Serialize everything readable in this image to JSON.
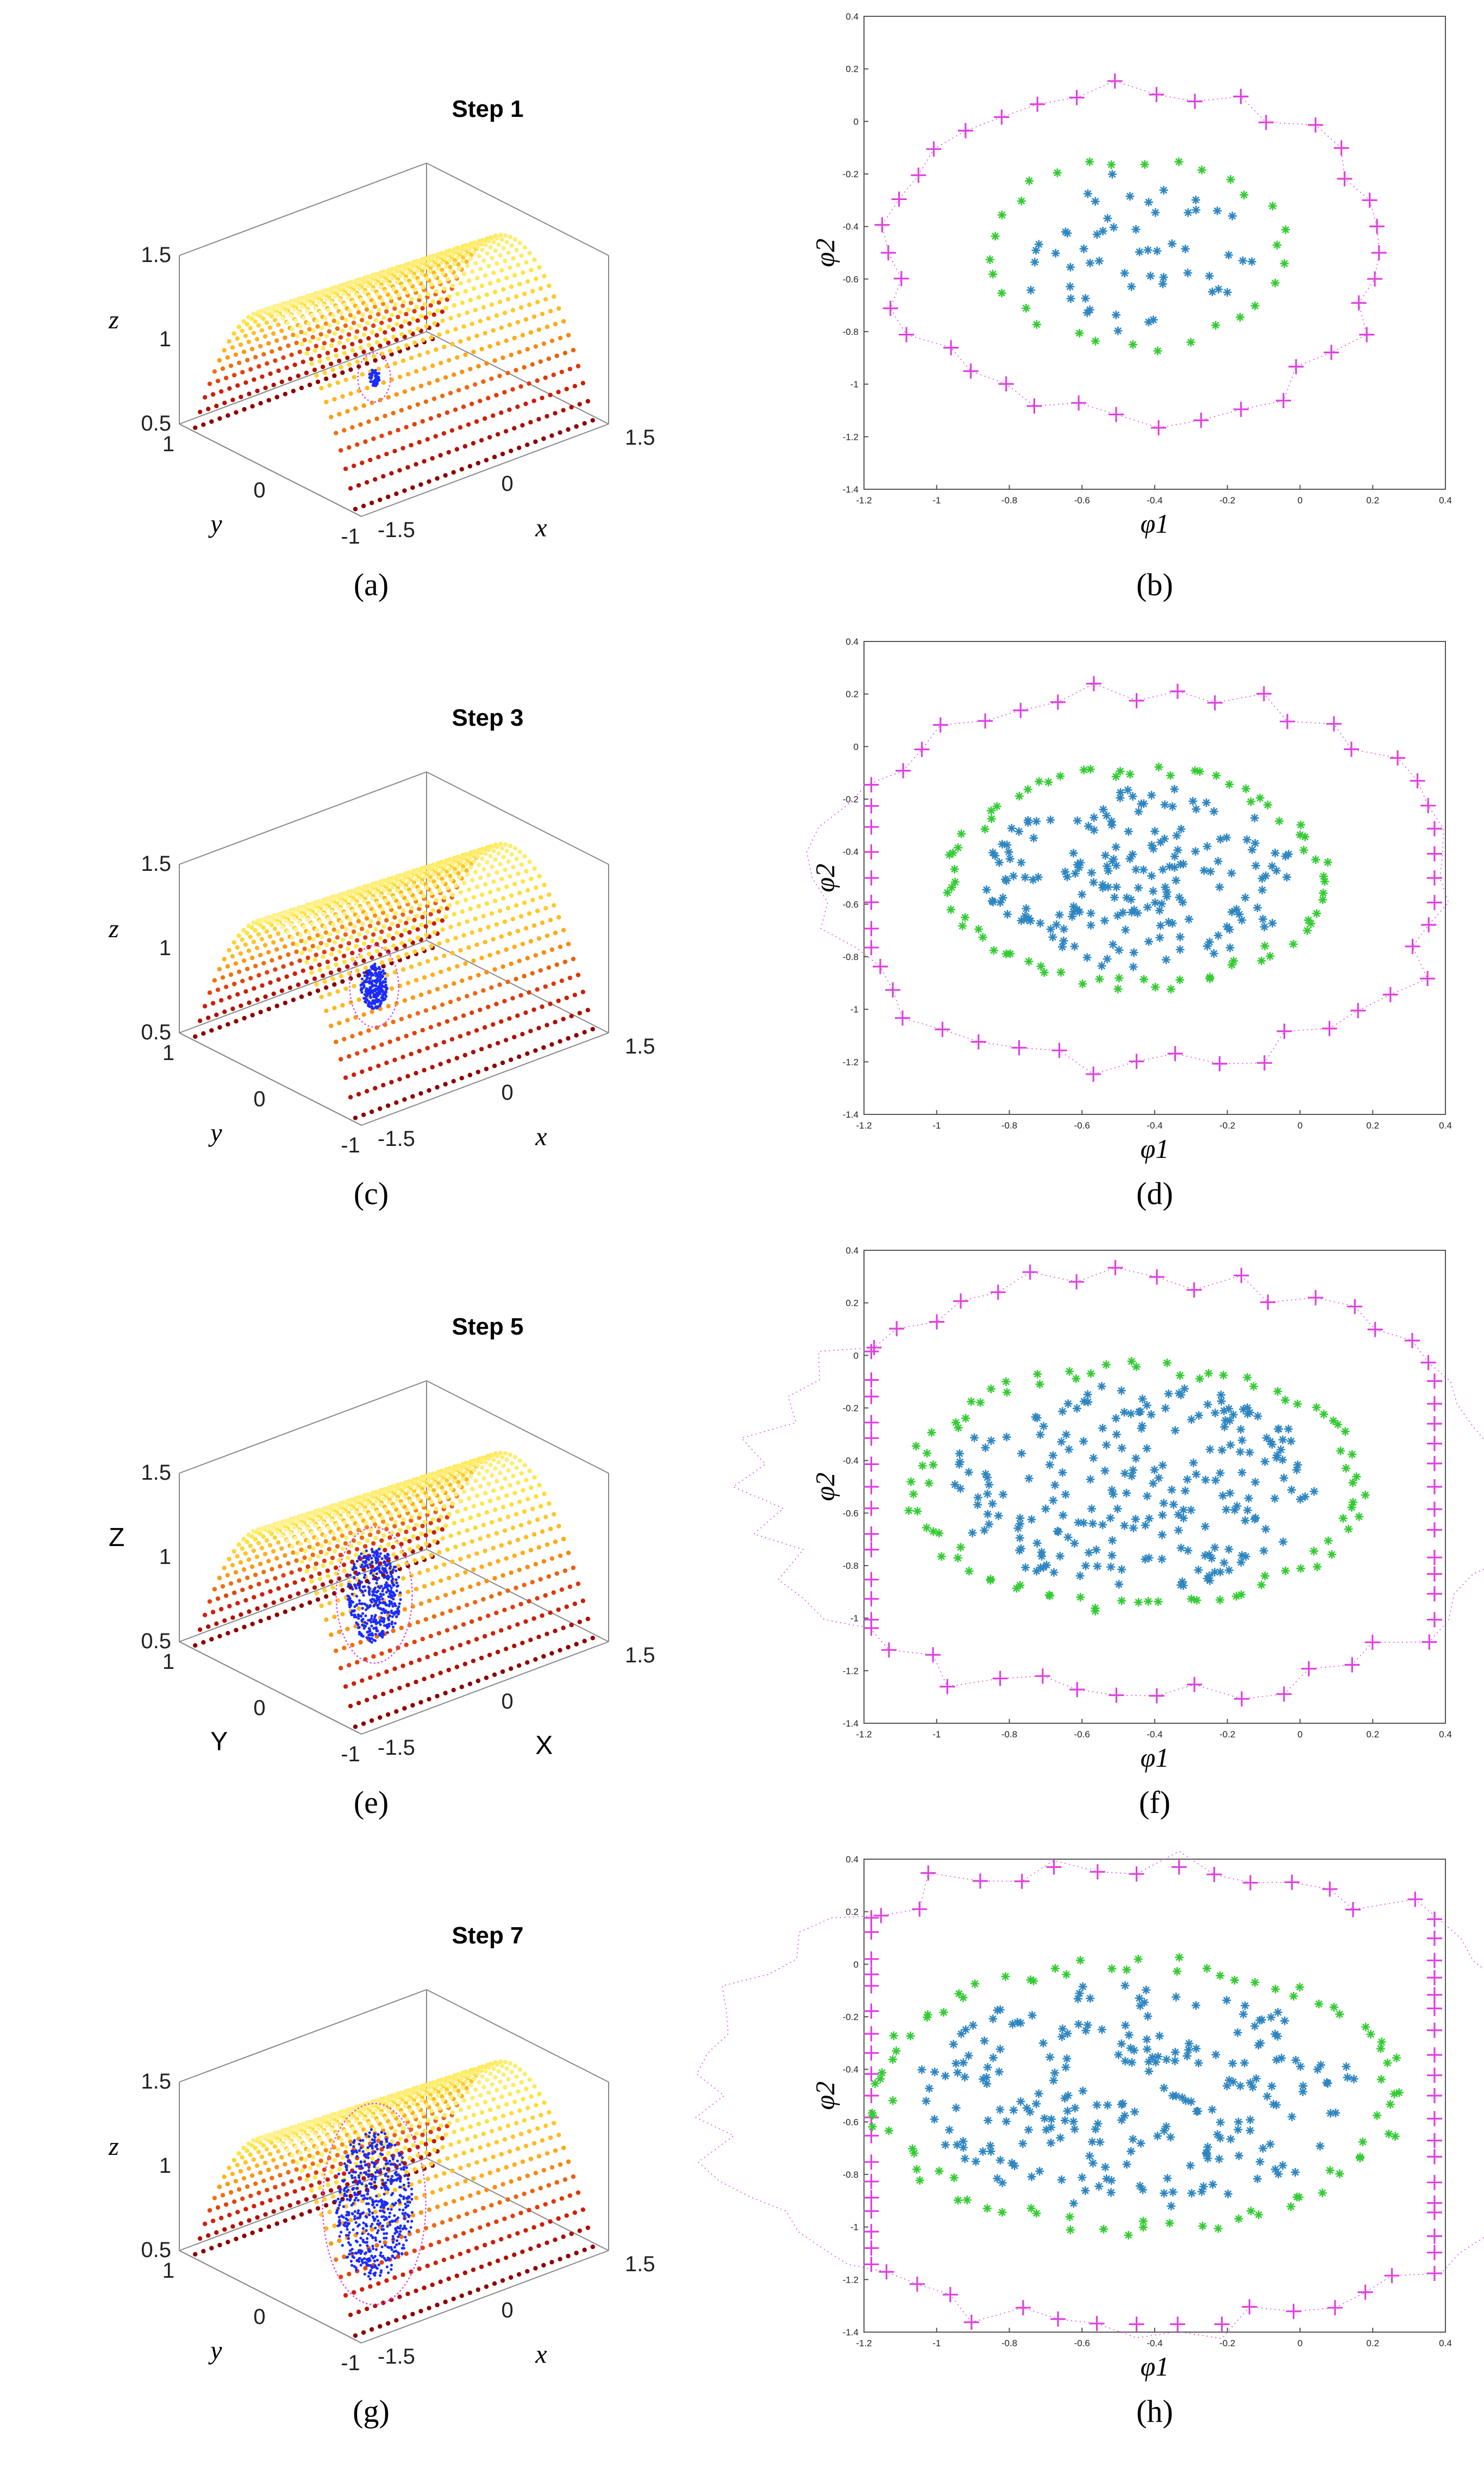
{
  "panels3d": [
    {
      "id": "a",
      "title": "Step 1",
      "caption": "(a)",
      "xlabel": "x",
      "ylabel": "y",
      "zlabel": "z",
      "italic": true,
      "region_h": [
        30,
        90
      ],
      "region_w": [
        10,
        30
      ],
      "inner_scale": 0.35
    },
    {
      "id": "c",
      "title": "Step 3",
      "caption": "(c)",
      "xlabel": "x",
      "ylabel": "y",
      "zlabel": "z",
      "italic": true,
      "region_h": [
        45,
        150
      ],
      "region_w": [
        20,
        45
      ],
      "inner_scale": 0.55
    },
    {
      "id": "e",
      "title": "Step 5",
      "caption": "(e)",
      "xlabel": "X",
      "ylabel": "Y",
      "zlabel": "Z",
      "italic": false,
      "region_h": [
        105,
        250
      ],
      "region_w": [
        40,
        70
      ],
      "inner_scale": 0.7
    },
    {
      "id": "g",
      "title": "Step 7",
      "caption": "(g)",
      "xlabel": "x",
      "ylabel": "y",
      "zlabel": "z",
      "italic": true,
      "region_h": [
        150,
        370
      ],
      "region_w": [
        60,
        95
      ],
      "inner_scale": 0.75
    }
  ],
  "axes3d": {
    "zticks": [
      "1.5",
      "1",
      "0.5"
    ],
    "yticks": [
      "1",
      "0",
      "-1"
    ],
    "xticks": [
      "1.5",
      "0",
      "-1.5"
    ]
  },
  "panels2d": [
    {
      "id": "b",
      "caption": "(b)",
      "seed": 11,
      "n_inner": 55,
      "n_green": 30
    },
    {
      "id": "d",
      "caption": "(d)",
      "seed": 23,
      "n_inner": 190,
      "n_green": 75
    },
    {
      "id": "f",
      "caption": "(f)",
      "seed": 37,
      "n_inner": 230,
      "n_green": 85
    },
    {
      "id": "h",
      "caption": "(h)",
      "seed": 53,
      "n_inner": 240,
      "n_green": 85
    }
  ],
  "chart_data": {
    "type": "scatter",
    "xlabel": "φ1",
    "ylabel": "φ2",
    "xlim": [
      -1.2,
      0.4
    ],
    "ylim": [
      -1.4,
      0.4
    ],
    "xticks": [
      "-1.2",
      "-1",
      "-0.8",
      "-0.6",
      "-0.4",
      "-0.2",
      "0",
      "0.2",
      "0.4"
    ],
    "yticks": [
      "0.4",
      "0.2",
      "0",
      "-0.2",
      "-0.4",
      "-0.6",
      "-0.8",
      "-1",
      "-1.2",
      "-1.4"
    ],
    "center": [
      -0.45,
      -0.5
    ],
    "series_colors": {
      "interior": "#2e86c1",
      "boundary": "#33cc33",
      "frontier": "#e040e0"
    }
  }
}
